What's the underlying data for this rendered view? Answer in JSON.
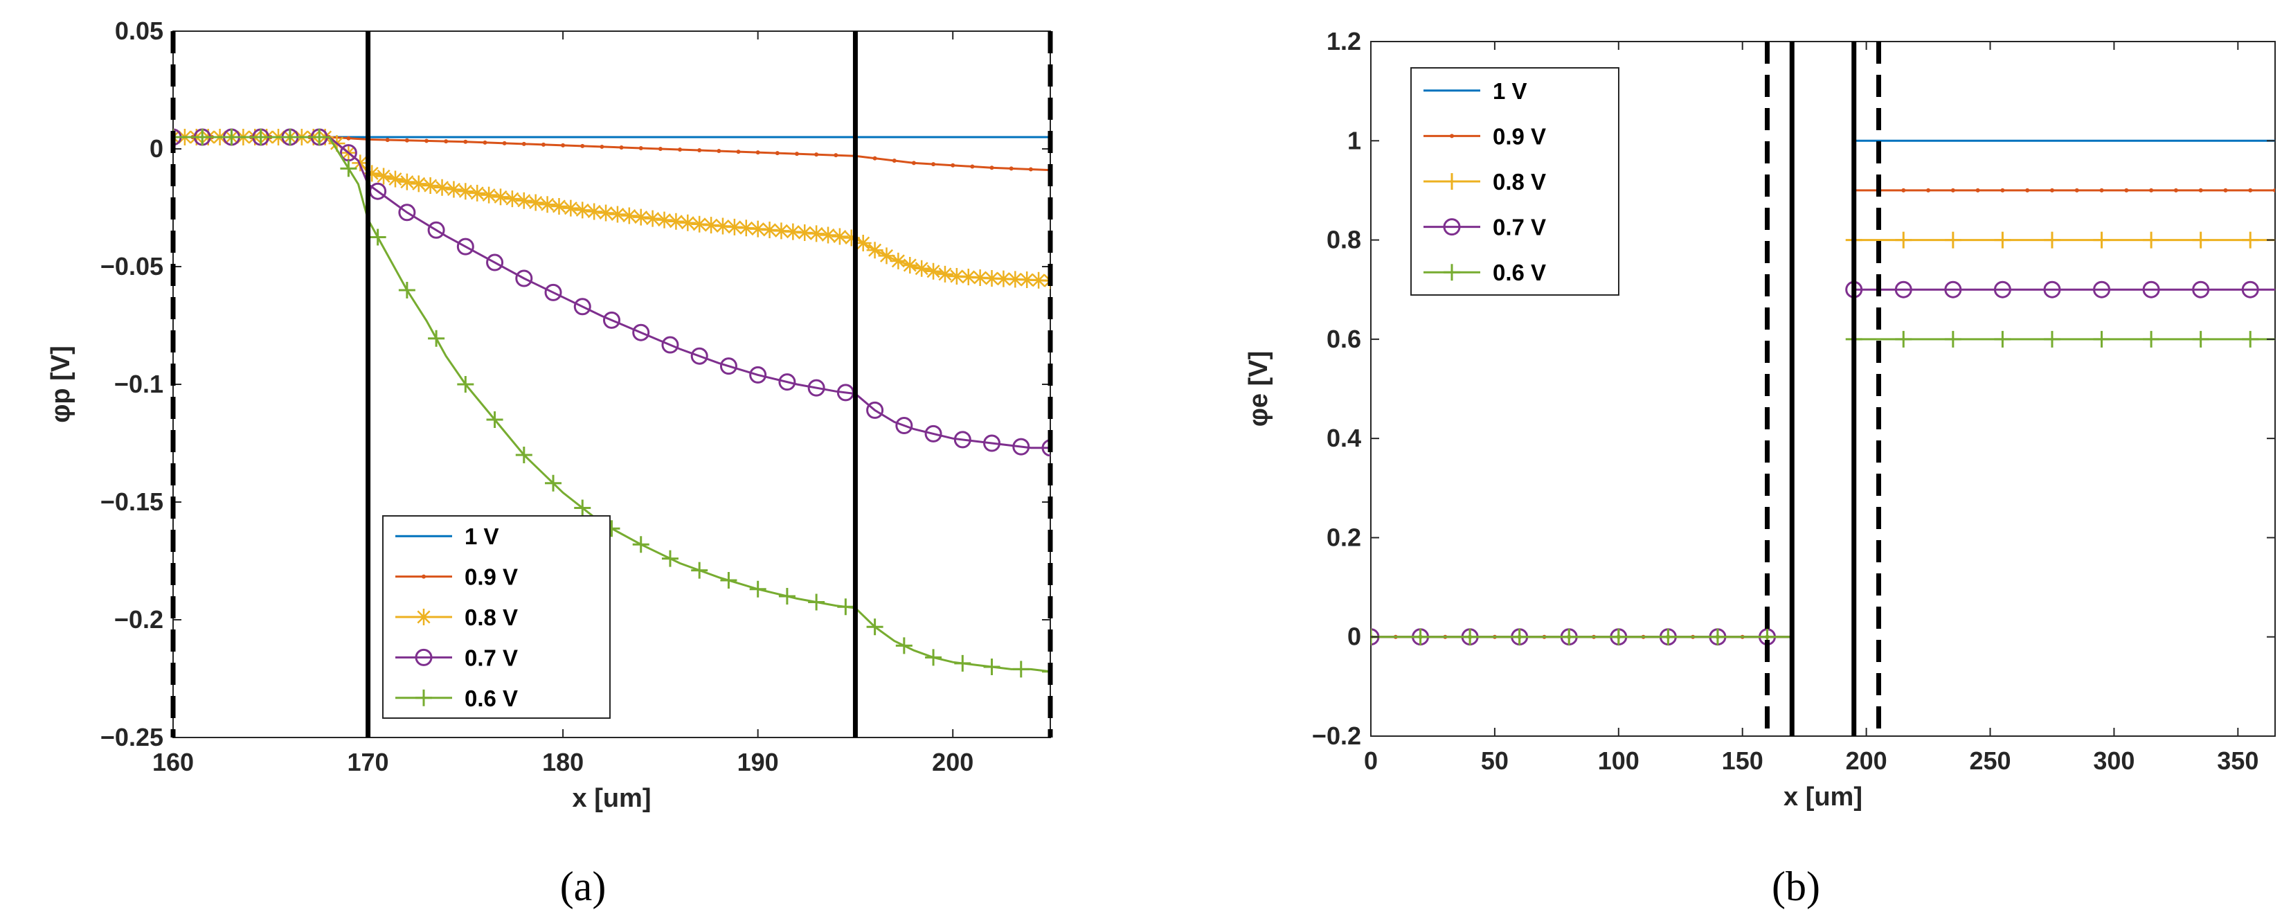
{
  "chart_data": [
    {
      "type": "line",
      "panel": "a",
      "caption": "(a)",
      "xlabel": "x [um]",
      "ylabel": "φp [V]",
      "xlim": [
        160,
        205
      ],
      "ylim": [
        -0.25,
        0.05
      ],
      "xticks": [
        "160",
        "170",
        "180",
        "190",
        "200"
      ],
      "yticks": [
        "0.05",
        "0",
        "−0.05",
        "−0.1",
        "−0.15",
        "−0.2",
        "−0.25"
      ],
      "legend_position": "lower-center",
      "vlines_solid": [
        170,
        195
      ],
      "vlines_dashed": [
        160,
        205
      ],
      "series": [
        {
          "name": "1 V",
          "color": "#0072BD",
          "marker": "none",
          "x": [
            160,
            170,
            195,
            205
          ],
          "y": [
            0.005,
            0.005,
            0.005,
            0.005
          ]
        },
        {
          "name": "0.9 V",
          "color": "#D95319",
          "marker": "dot",
          "x": [
            160,
            168,
            170,
            175,
            180,
            185,
            190,
            195,
            198,
            202,
            205
          ],
          "y": [
            0.005,
            0.005,
            0.004,
            0.003,
            0.0015,
            0.0,
            -0.0015,
            -0.003,
            -0.006,
            -0.008,
            -0.009
          ]
        },
        {
          "name": "0.8 V",
          "color": "#EDB120",
          "marker": "star",
          "x": [
            160,
            168,
            169.5,
            170,
            172,
            175,
            178,
            181,
            184,
            187,
            190,
            193,
            195,
            196,
            197,
            198,
            199,
            200,
            202,
            205
          ],
          "y": [
            0.005,
            0.005,
            -0.005,
            -0.01,
            -0.014,
            -0.018,
            -0.022,
            -0.026,
            -0.029,
            -0.032,
            -0.034,
            -0.036,
            -0.038,
            -0.043,
            -0.047,
            -0.05,
            -0.052,
            -0.054,
            -0.055,
            -0.056
          ]
        },
        {
          "name": "0.7 V",
          "color": "#7E2F8E",
          "marker": "circle",
          "x": [
            160,
            168,
            169.5,
            170,
            171,
            172,
            174,
            176,
            178,
            180,
            182,
            184,
            186,
            188,
            190,
            192,
            194,
            195,
            196,
            197,
            198,
            199,
            200,
            201,
            202,
            203,
            204,
            205
          ],
          "y": [
            0.005,
            0.005,
            -0.005,
            -0.015,
            -0.021,
            -0.027,
            -0.037,
            -0.046,
            -0.055,
            -0.063,
            -0.071,
            -0.078,
            -0.085,
            -0.091,
            -0.096,
            -0.1,
            -0.103,
            -0.104,
            -0.111,
            -0.116,
            -0.119,
            -0.121,
            -0.123,
            -0.124,
            -0.125,
            -0.126,
            -0.127,
            -0.127
          ]
        },
        {
          "name": "0.6 V",
          "color": "#77AC30",
          "marker": "plus",
          "x": [
            160,
            168,
            169.5,
            170,
            171,
            172,
            173,
            174,
            175,
            176,
            177,
            178,
            180,
            182,
            184,
            186,
            188,
            190,
            192,
            194,
            195,
            196,
            197,
            198,
            199,
            200,
            201,
            202,
            203,
            204,
            205
          ],
          "y": [
            0.005,
            0.005,
            -0.015,
            -0.03,
            -0.045,
            -0.06,
            -0.073,
            -0.088,
            -0.1,
            -0.11,
            -0.12,
            -0.13,
            -0.146,
            -0.159,
            -0.168,
            -0.176,
            -0.182,
            -0.187,
            -0.191,
            -0.194,
            -0.195,
            -0.203,
            -0.209,
            -0.213,
            -0.216,
            -0.218,
            -0.219,
            -0.22,
            -0.221,
            -0.221,
            -0.222
          ]
        }
      ]
    },
    {
      "type": "line",
      "panel": "b",
      "caption": "(b)",
      "xlabel": "x [um]",
      "ylabel": "φe [V]",
      "xlim": [
        0,
        365
      ],
      "ylim": [
        -0.2,
        1.2
      ],
      "xticks": [
        "0",
        "50",
        "100",
        "150",
        "200",
        "250",
        "300",
        "350"
      ],
      "yticks": [
        "1.2",
        "1",
        "0.8",
        "0.6",
        "0.4",
        "0.2",
        "0",
        "−0.2"
      ],
      "legend_position": "top-left",
      "vlines_solid": [
        170,
        195
      ],
      "vlines_dashed": [
        160,
        205
      ],
      "series": [
        {
          "name": "1 V",
          "color": "#0072BD",
          "marker": "none",
          "segments": [
            {
              "x": [
                0,
                170
              ],
              "y": [
                0,
                0
              ]
            },
            {
              "x": [
                195,
                365
              ],
              "y": [
                1,
                1
              ]
            }
          ]
        },
        {
          "name": "0.9 V",
          "color": "#D95319",
          "marker": "dot",
          "segments": [
            {
              "x": [
                0,
                170
              ],
              "y": [
                0,
                0
              ]
            },
            {
              "x": [
                195,
                365
              ],
              "y": [
                0.9,
                0.9
              ]
            }
          ]
        },
        {
          "name": "0.8 V",
          "color": "#EDB120",
          "marker": "plus",
          "segments": [
            {
              "x": [
                0,
                170
              ],
              "y": [
                0,
                0
              ]
            },
            {
              "x": [
                195,
                365
              ],
              "y": [
                0.8,
                0.8
              ]
            }
          ]
        },
        {
          "name": "0.7 V",
          "color": "#7E2F8E",
          "marker": "circle",
          "segments": [
            {
              "x": [
                0,
                170
              ],
              "y": [
                0,
                0
              ]
            },
            {
              "x": [
                195,
                365
              ],
              "y": [
                0.7,
                0.7
              ]
            }
          ]
        },
        {
          "name": "0.6 V",
          "color": "#77AC30",
          "marker": "plus",
          "segments": [
            {
              "x": [
                0,
                170
              ],
              "y": [
                0,
                0
              ]
            },
            {
              "x": [
                195,
                365
              ],
              "y": [
                0.6,
                0.6
              ]
            }
          ]
        }
      ]
    }
  ]
}
